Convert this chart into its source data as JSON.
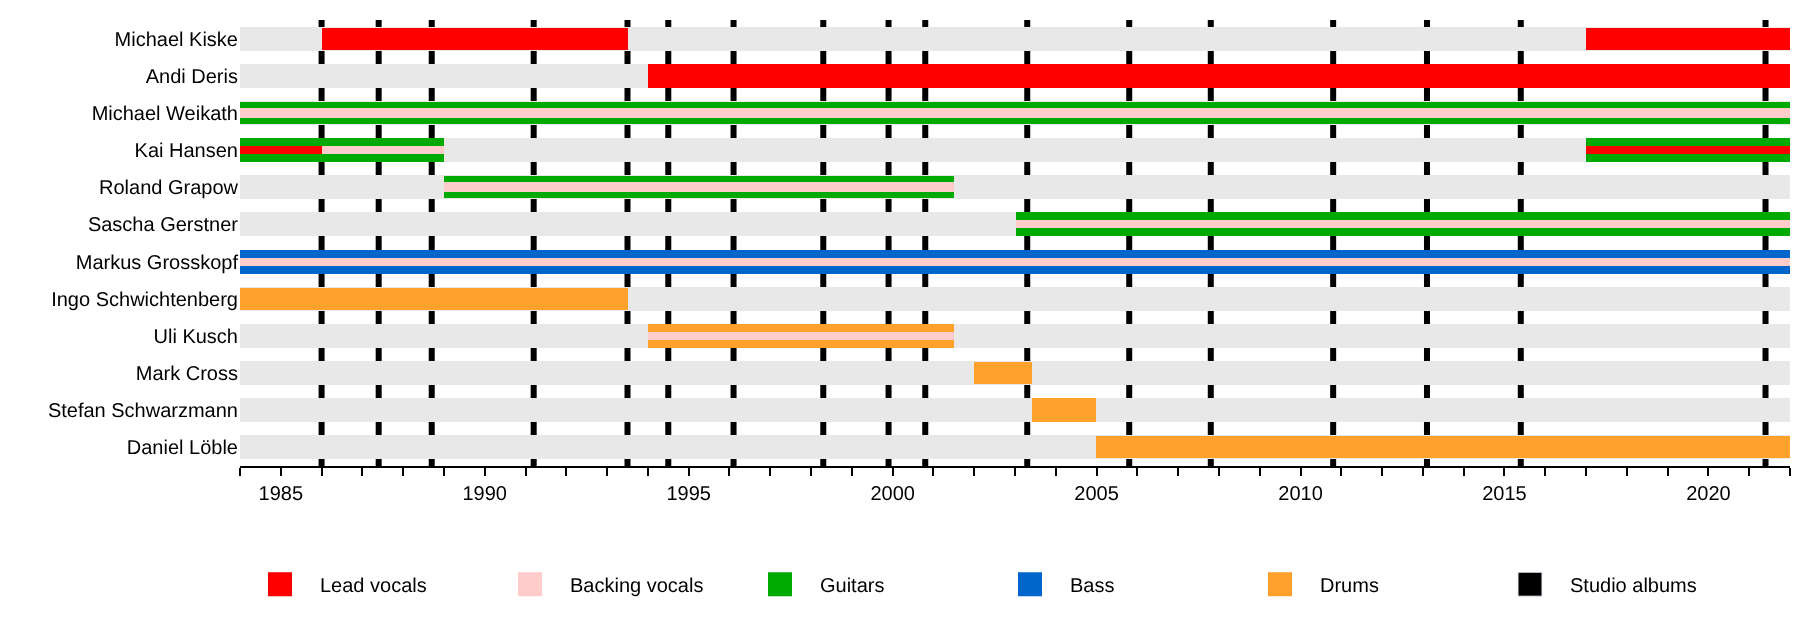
{
  "chart_data": {
    "type": "bar",
    "orientation": "horizontal",
    "categories": [
      "Michael Kiske",
      "Andi Deris",
      "Michael Weikath",
      "Kai Hansen",
      "Roland Grapow",
      "Sascha Gerstner",
      "Markus Grosskopf",
      "Ingo Schwichtenberg",
      "Uli Kusch",
      "Mark Cross",
      "Stefan Schwarzmann",
      "Daniel Löble"
    ],
    "series": [
      {
        "name": "Lead vocals",
        "color": "#ff0000",
        "base": [
          1986,
          1994,
          null,
          1984,
          null,
          null,
          null,
          null,
          null,
          null,
          null,
          null
        ],
        "values": [
          7.5,
          28,
          null,
          2,
          null,
          null,
          null,
          null,
          null,
          null,
          null,
          null
        ]
      },
      {
        "color": "#ff0000",
        "base": [
          2017,
          null,
          null,
          2017,
          null,
          null,
          null,
          null,
          null,
          null,
          null,
          null
        ],
        "values": [
          5,
          null,
          null,
          5,
          null,
          null,
          null,
          null,
          null,
          null,
          null,
          null
        ]
      },
      {
        "name": "Backing vocals",
        "color": "#ffcccc",
        "base": [
          null,
          null,
          1984,
          1986,
          1989,
          2003,
          1984,
          null,
          1994,
          null,
          null,
          null
        ],
        "values": [
          null,
          null,
          38,
          3,
          12.5,
          19,
          38,
          null,
          7.5,
          null,
          null,
          null
        ]
      },
      {
        "name": "Guitars",
        "color": "#00aa00",
        "base": [
          null,
          null,
          1984,
          1984,
          1989,
          2003,
          null,
          null,
          null,
          null,
          null,
          null
        ],
        "values": [
          null,
          null,
          38,
          5,
          12.5,
          19,
          null,
          null,
          null,
          null,
          null,
          null
        ]
      },
      {
        "color": "#00aa00",
        "base": [
          null,
          null,
          null,
          2017,
          null,
          null,
          null,
          null,
          null,
          null,
          null,
          null
        ],
        "values": [
          null,
          null,
          null,
          5,
          null,
          null,
          null,
          null,
          null,
          null,
          null,
          null
        ]
      },
      {
        "name": "Bass",
        "color": "#0066cc",
        "base": [
          null,
          null,
          null,
          null,
          null,
          null,
          1984,
          null,
          null,
          null,
          null,
          null
        ],
        "values": [
          null,
          null,
          null,
          null,
          null,
          null,
          38,
          null,
          null,
          null,
          null,
          null
        ]
      },
      {
        "name": "Drums",
        "color": "#ffa12b",
        "base": [
          null,
          null,
          null,
          null,
          null,
          null,
          null,
          1984,
          1994,
          2002,
          2003.4,
          2005
        ],
        "values": [
          null,
          null,
          null,
          null,
          null,
          null,
          null,
          9.5,
          7.5,
          1.4,
          1.6,
          17
        ]
      }
    ],
    "ref_lines": [
      {
        "axis": "x",
        "value": 1986.0,
        "label": "Studio albums",
        "color": "#000000"
      },
      {
        "axis": "x",
        "value": 1987.4,
        "color": "#000000"
      },
      {
        "axis": "x",
        "value": 1988.7,
        "color": "#000000"
      },
      {
        "axis": "x",
        "value": 1991.2,
        "color": "#000000"
      },
      {
        "axis": "x",
        "value": 1993.5,
        "color": "#000000"
      },
      {
        "axis": "x",
        "value": 1994.5,
        "color": "#000000"
      },
      {
        "axis": "x",
        "value": 1996.1,
        "color": "#000000"
      },
      {
        "axis": "x",
        "value": 1998.3,
        "color": "#000000"
      },
      {
        "axis": "x",
        "value": 1999.9,
        "color": "#000000"
      },
      {
        "axis": "x",
        "value": 2000.8,
        "color": "#000000"
      },
      {
        "axis": "x",
        "value": 2003.3,
        "color": "#000000"
      },
      {
        "axis": "x",
        "value": 2005.8,
        "color": "#000000"
      },
      {
        "axis": "x",
        "value": 2007.8,
        "color": "#000000"
      },
      {
        "axis": "x",
        "value": 2010.8,
        "color": "#000000"
      },
      {
        "axis": "x",
        "value": 2013.1,
        "color": "#000000"
      },
      {
        "axis": "x",
        "value": 2015.4,
        "color": "#000000"
      },
      {
        "axis": "x",
        "value": 2021.4,
        "color": "#000000"
      }
    ],
    "xlim": [
      1984,
      2022
    ],
    "xticks": [
      {
        "value": 1984,
        "label": null
      },
      1985,
      {
        "value": 1986,
        "label": null
      },
      {
        "value": 1987,
        "label": null
      },
      {
        "value": 1988,
        "label": null
      },
      {
        "value": 1989,
        "label": null
      },
      1990,
      {
        "value": 1991,
        "label": null
      },
      {
        "value": 1992,
        "label": null
      },
      {
        "value": 1993,
        "label": null
      },
      {
        "value": 1994,
        "label": null
      },
      1995,
      {
        "value": 1996,
        "label": null
      },
      {
        "value": 1997,
        "label": null
      },
      {
        "value": 1998,
        "label": null
      },
      {
        "value": 1999,
        "label": null
      },
      2000,
      {
        "value": 2001,
        "label": null
      },
      {
        "value": 2002,
        "label": null
      },
      {
        "value": 2003,
        "label": null
      },
      {
        "value": 2004,
        "label": null
      },
      2005,
      {
        "value": 2006,
        "label": null
      },
      {
        "value": 2007,
        "label": null
      },
      {
        "value": 2008,
        "label": null
      },
      {
        "value": 2009,
        "label": null
      },
      2010,
      {
        "value": 2011,
        "label": null
      },
      {
        "value": 2012,
        "label": null
      },
      {
        "value": 2013,
        "label": null
      },
      {
        "value": 2014,
        "label": null
      },
      2015,
      {
        "value": 2016,
        "label": null
      },
      {
        "value": 2017,
        "label": null
      },
      {
        "value": 2018,
        "label": null
      },
      {
        "value": 2019,
        "label": null
      },
      2020,
      {
        "value": 2021,
        "label": null
      },
      {
        "value": 2022,
        "label": null
      }
    ],
    "grid": "y",
    "legend": "bottom"
  }
}
